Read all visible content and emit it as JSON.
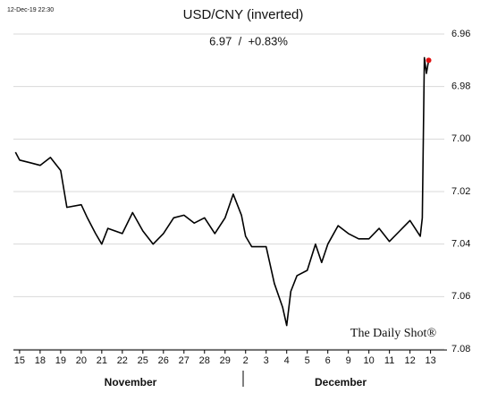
{
  "chart_data": {
    "type": "line",
    "title": "USD/CNY (inverted)",
    "subtitle": "6.97  /  +0.83%",
    "timestamp": "12-Dec-19 22:30",
    "watermark": "The Daily Shot®",
    "inverted": true,
    "grid": true,
    "months": [
      "November",
      "December"
    ],
    "x": [
      -0.2,
      0,
      0.5,
      1,
      1.5,
      2,
      2.3,
      3,
      3.3,
      3.7,
      4,
      4.3,
      5,
      5.5,
      6,
      6.5,
      7,
      7.5,
      8,
      8.5,
      9,
      9.5,
      10,
      10.4,
      10.8,
      11,
      11.3,
      12,
      12.4,
      12.8,
      13,
      13.2,
      13.5,
      14,
      14.4,
      14.7,
      15,
      15.5,
      16,
      16.5,
      17,
      17.5,
      18,
      18.5,
      19,
      19.5,
      19.6,
      19.7,
      19.8,
      19.91
    ],
    "series": [
      {
        "color": "#000000",
        "last_marker_color": "#e01010",
        "values": [
          7.005,
          7.008,
          7.009,
          7.01,
          7.007,
          7.012,
          7.026,
          7.025,
          7.03,
          7.036,
          7.04,
          7.034,
          7.036,
          7.028,
          7.035,
          7.04,
          7.036,
          7.03,
          7.029,
          7.032,
          7.03,
          7.036,
          7.03,
          7.021,
          7.029,
          7.037,
          7.041,
          7.041,
          7.055,
          7.064,
          7.071,
          7.058,
          7.052,
          7.05,
          7.04,
          7.047,
          7.04,
          7.033,
          7.036,
          7.038,
          7.038,
          7.034,
          7.039,
          7.035,
          7.031,
          7.037,
          7.03,
          6.969,
          6.975,
          6.97
        ]
      }
    ],
    "xlim": [
      -0.3,
      20.8
    ],
    "xticks": [
      {
        "value": 0,
        "label": "15"
      },
      {
        "value": 1,
        "label": "18"
      },
      {
        "value": 2,
        "label": "19"
      },
      {
        "value": 3,
        "label": "20"
      },
      {
        "value": 4,
        "label": "21"
      },
      {
        "value": 5,
        "label": "22"
      },
      {
        "value": 6,
        "label": "25"
      },
      {
        "value": 7,
        "label": "26"
      },
      {
        "value": 8,
        "label": "27"
      },
      {
        "value": 9,
        "label": "28"
      },
      {
        "value": 10,
        "label": "29"
      },
      {
        "value": 11,
        "label": "2"
      },
      {
        "value": 12,
        "label": "3"
      },
      {
        "value": 13,
        "label": "4"
      },
      {
        "value": 14,
        "label": "5"
      },
      {
        "value": 15,
        "label": "6"
      },
      {
        "value": 16,
        "label": "9"
      },
      {
        "value": 17,
        "label": "10"
      },
      {
        "value": 18,
        "label": "11"
      },
      {
        "value": 19,
        "label": "12"
      },
      {
        "value": 20,
        "label": "13"
      }
    ],
    "ylim": [
      6.96,
      7.08
    ],
    "yticks": [
      6.96,
      6.98,
      {
        "value": 7,
        "label": "7.00"
      },
      7.02,
      7.04,
      7.06,
      7.08
    ]
  }
}
